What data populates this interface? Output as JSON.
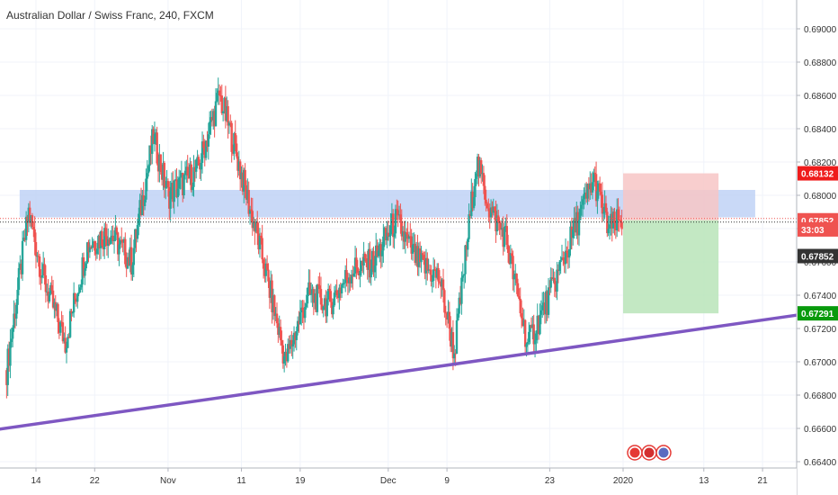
{
  "header": {
    "symbol_title": "Australian Dollar / Swiss Franc, 240, FXCM"
  },
  "colors": {
    "up": "#26a69a",
    "down": "#ef5350",
    "trendline": "#7e57c2",
    "zone": "#bbd0f5",
    "profit": "#b9e4b9",
    "loss": "#f7c5c5",
    "target_label": "#089a0c",
    "stop_label": "#ef1b1b",
    "price_label": "#ef5350",
    "dark_label": "#333333"
  },
  "chart_data": {
    "type": "candlestick",
    "title": "Australian Dollar / Swiss Franc, 240, FXCM",
    "ylim": [
      0.6635,
      0.6905
    ],
    "y_ticks": [
      "0.66400",
      "0.66600",
      "0.66800",
      "0.67000",
      "0.67200",
      "0.67400",
      "0.67600",
      "0.67800",
      "0.68000",
      "0.68200",
      "0.68400",
      "0.68600",
      "0.68800",
      "0.69000"
    ],
    "x_ticks": [
      "14",
      "22",
      "Nov",
      "11",
      "19",
      "Dec",
      "9",
      "23",
      "2020",
      "13",
      "21"
    ],
    "grid": true,
    "price_labels": {
      "stop": "0.68132",
      "current": "0.67852",
      "countdown": "33:03",
      "current_dark": "0.67852",
      "target": "0.67291"
    },
    "anchor_points": [
      {
        "date": "Oct 10",
        "close": 0.6695
      },
      {
        "date": "Oct 13",
        "close": 0.679
      },
      {
        "date": "Oct 15",
        "close": 0.675
      },
      {
        "date": "Oct 18",
        "close": 0.6712
      },
      {
        "date": "Oct 21",
        "close": 0.677
      },
      {
        "date": "Oct 24",
        "close": 0.6778
      },
      {
        "date": "Oct 27",
        "close": 0.676
      },
      {
        "date": "Oct 30",
        "close": 0.6835
      },
      {
        "date": "Nov 1",
        "close": 0.68
      },
      {
        "date": "Nov 5",
        "close": 0.6815
      },
      {
        "date": "Nov 8",
        "close": 0.686
      },
      {
        "date": "Nov 10",
        "close": 0.683
      },
      {
        "date": "Nov 14",
        "close": 0.676
      },
      {
        "date": "Nov 17",
        "close": 0.67
      },
      {
        "date": "Nov 20",
        "close": 0.674
      },
      {
        "date": "Nov 23",
        "close": 0.6735
      },
      {
        "date": "Nov 26",
        "close": 0.6755
      },
      {
        "date": "Nov 29",
        "close": 0.676
      },
      {
        "date": "Dec 2",
        "close": 0.6785
      },
      {
        "date": "Dec 5",
        "close": 0.676
      },
      {
        "date": "Dec 8",
        "close": 0.675
      },
      {
        "date": "Dec 10",
        "close": 0.6705
      },
      {
        "date": "Dec 13",
        "close": 0.682
      },
      {
        "date": "Dec 15",
        "close": 0.679
      },
      {
        "date": "Dec 17",
        "close": 0.6775
      },
      {
        "date": "Dec 20",
        "close": 0.671
      },
      {
        "date": "Dec 23",
        "close": 0.674
      },
      {
        "date": "Dec 26",
        "close": 0.6775
      },
      {
        "date": "Dec 29",
        "close": 0.681
      },
      {
        "date": "Dec 31",
        "close": 0.678
      },
      {
        "date": "Jan 2",
        "close": 0.6785
      }
    ],
    "support_zone": {
      "from": "Oct 13",
      "to": "Jan 20",
      "low": 0.679,
      "high": 0.68
    },
    "trendline": [
      {
        "date": "Oct 10",
        "price": 0.6659
      },
      {
        "date": "Jan 25",
        "price": 0.6728
      }
    ],
    "position": {
      "entry": 0.6785,
      "stop": 0.68132,
      "target": 0.67291,
      "from": "Jan 2",
      "to": "Jan 15"
    }
  }
}
